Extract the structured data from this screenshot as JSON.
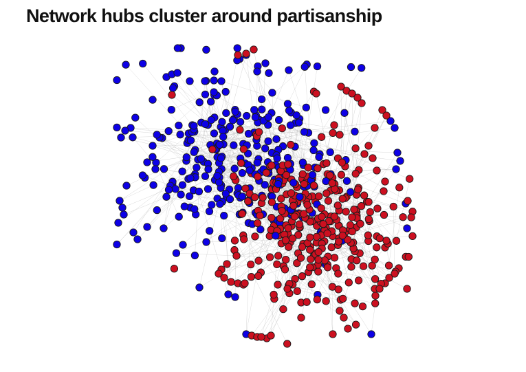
{
  "title": "Network hubs cluster around partisanship",
  "colors": {
    "left_group": "#0d00e6",
    "right_group": "#cc1020",
    "node_stroke": "#1a1a1a",
    "edge": "#bdbdbd",
    "background": "#ffffff"
  }
}
